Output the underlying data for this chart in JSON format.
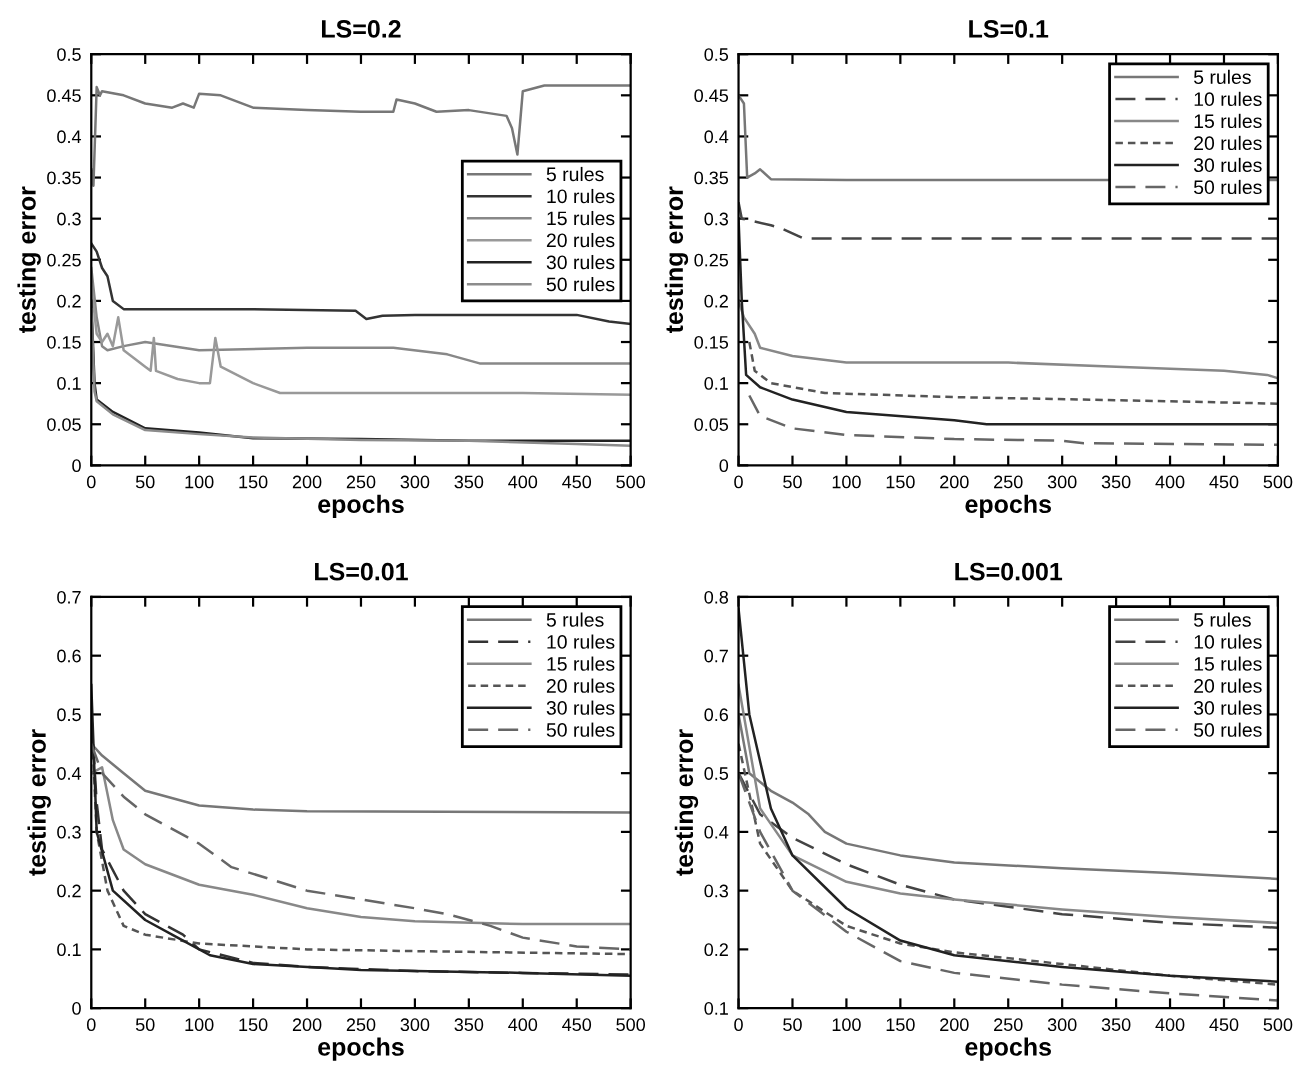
{
  "chart_data": [
    {
      "type": "line",
      "title": "LS=0.2",
      "xlabel": "epochs",
      "ylabel": "testing error",
      "xlim": [
        0,
        500
      ],
      "xticks": [
        0,
        50,
        100,
        150,
        200,
        250,
        300,
        350,
        400,
        450,
        500
      ],
      "ylim": [
        0,
        0.5
      ],
      "yticks": [
        0,
        0.05,
        0.1,
        0.15,
        0.2,
        0.25,
        0.3,
        0.35,
        0.4,
        0.45,
        0.5
      ],
      "grid": false,
      "legend": "right",
      "series": [
        {
          "name": "5 rules",
          "color": "#777777",
          "line_style": "solid",
          "x": [
            0,
            2,
            5,
            8,
            10,
            30,
            50,
            75,
            85,
            95,
            100,
            120,
            150,
            200,
            250,
            280,
            283,
            300,
            320,
            350,
            385,
            390,
            395,
            400,
            420,
            500
          ],
          "values": [
            0.36,
            0.34,
            0.46,
            0.45,
            0.455,
            0.45,
            0.44,
            0.435,
            0.44,
            0.435,
            0.452,
            0.45,
            0.435,
            0.432,
            0.43,
            0.43,
            0.445,
            0.44,
            0.43,
            0.432,
            0.425,
            0.41,
            0.378,
            0.455,
            0.462,
            0.462
          ]
        },
        {
          "name": "10 rules",
          "color": "#333333",
          "line_style": "solid",
          "x": [
            0,
            5,
            10,
            15,
            20,
            30,
            100,
            150,
            245,
            255,
            270,
            300,
            400,
            450,
            480,
            500
          ],
          "values": [
            0.27,
            0.26,
            0.24,
            0.23,
            0.2,
            0.19,
            0.19,
            0.19,
            0.188,
            0.178,
            0.182,
            0.183,
            0.183,
            0.183,
            0.175,
            0.172
          ]
        },
        {
          "name": "15 rules",
          "color": "#888888",
          "line_style": "solid",
          "x": [
            0,
            5,
            10,
            15,
            30,
            50,
            100,
            200,
            280,
            330,
            360,
            500
          ],
          "values": [
            0.24,
            0.18,
            0.145,
            0.14,
            0.145,
            0.15,
            0.14,
            0.143,
            0.143,
            0.135,
            0.124,
            0.124
          ]
        },
        {
          "name": "20 rules",
          "color": "#999999",
          "line_style": "solid",
          "x": [
            0,
            5,
            10,
            15,
            20,
            25,
            30,
            40,
            50,
            55,
            58,
            60,
            80,
            100,
            110,
            115,
            120,
            150,
            175,
            250,
            400,
            500
          ],
          "values": [
            0.22,
            0.16,
            0.15,
            0.16,
            0.145,
            0.18,
            0.14,
            0.13,
            0.12,
            0.115,
            0.155,
            0.115,
            0.105,
            0.1,
            0.1,
            0.155,
            0.12,
            0.1,
            0.088,
            0.088,
            0.088,
            0.086
          ]
        },
        {
          "name": "30 rules",
          "color": "#222222",
          "line_style": "solid",
          "x": [
            0,
            3,
            5,
            20,
            50,
            100,
            150,
            250,
            350,
            500
          ],
          "values": [
            0.2,
            0.1,
            0.08,
            0.065,
            0.045,
            0.04,
            0.033,
            0.032,
            0.03,
            0.03
          ]
        },
        {
          "name": "50 rules",
          "color": "#8c8c8c",
          "line_style": "solid",
          "x": [
            0,
            3,
            5,
            20,
            50,
            100,
            150,
            250,
            350,
            450,
            500
          ],
          "values": [
            0.19,
            0.09,
            0.078,
            0.062,
            0.043,
            0.038,
            0.034,
            0.031,
            0.03,
            0.026,
            0.024
          ]
        }
      ]
    },
    {
      "type": "line",
      "title": "LS=0.1",
      "xlabel": "epochs",
      "ylabel": "testing error",
      "xlim": [
        0,
        500
      ],
      "xticks": [
        0,
        50,
        100,
        150,
        200,
        250,
        300,
        350,
        400,
        450,
        500
      ],
      "ylim": [
        0,
        0.5
      ],
      "yticks": [
        0,
        0.05,
        0.1,
        0.15,
        0.2,
        0.25,
        0.3,
        0.35,
        0.4,
        0.45,
        0.5
      ],
      "grid": false,
      "legend": "top right",
      "series": [
        {
          "name": "5 rules",
          "color": "#777777",
          "line_style": "solid",
          "x": [
            0,
            5,
            8,
            15,
            20,
            30,
            100,
            300,
            500
          ],
          "values": [
            0.45,
            0.44,
            0.35,
            0.355,
            0.36,
            0.348,
            0.347,
            0.347,
            0.347
          ]
        },
        {
          "name": "10 rules",
          "color": "#444444",
          "line_style": "dashed",
          "x": [
            0,
            3,
            30,
            40,
            60,
            500
          ],
          "values": [
            0.32,
            0.3,
            0.292,
            0.288,
            0.276,
            0.276
          ]
        },
        {
          "name": "15 rules",
          "color": "#888888",
          "line_style": "solid",
          "x": [
            0,
            5,
            15,
            20,
            50,
            100,
            250,
            350,
            450,
            490,
            500
          ],
          "values": [
            0.2,
            0.18,
            0.16,
            0.143,
            0.133,
            0.125,
            0.125,
            0.12,
            0.115,
            0.11,
            0.106
          ]
        },
        {
          "name": "20 rules",
          "color": "#555555",
          "line_style": "dotted",
          "x": [
            10,
            15,
            30,
            80,
            200,
            400,
            500
          ],
          "values": [
            0.15,
            0.115,
            0.1,
            0.088,
            0.083,
            0.078,
            0.075
          ]
        },
        {
          "name": "30 rules",
          "color": "#222222",
          "line_style": "solid",
          "x": [
            0,
            3,
            7,
            20,
            50,
            100,
            200,
            230,
            500
          ],
          "values": [
            0.3,
            0.2,
            0.11,
            0.095,
            0.08,
            0.065,
            0.055,
            0.05,
            0.05
          ]
        },
        {
          "name": "50 rules",
          "color": "#666666",
          "line_style": "dashed",
          "x": [
            10,
            20,
            50,
            100,
            200,
            300,
            320,
            500
          ],
          "values": [
            0.085,
            0.06,
            0.045,
            0.037,
            0.032,
            0.03,
            0.027,
            0.025
          ]
        }
      ]
    },
    {
      "type": "line",
      "title": "LS=0.01",
      "xlabel": "epochs",
      "ylabel": "testing error",
      "xlim": [
        0,
        500
      ],
      "xticks": [
        0,
        50,
        100,
        150,
        200,
        250,
        300,
        350,
        400,
        450,
        500
      ],
      "ylim": [
        0,
        0.7
      ],
      "yticks": [
        0,
        0.1,
        0.2,
        0.3,
        0.4,
        0.5,
        0.6,
        0.7
      ],
      "grid": false,
      "legend": "top right",
      "series": [
        {
          "name": "5 rules",
          "color": "#777777",
          "line_style": "solid",
          "x": [
            0,
            10,
            30,
            50,
            100,
            150,
            200,
            500
          ],
          "values": [
            0.45,
            0.43,
            0.4,
            0.37,
            0.345,
            0.338,
            0.335,
            0.333
          ]
        },
        {
          "name": "10 rules",
          "color": "#333333",
          "line_style": "dashed",
          "x": [
            0,
            5,
            10,
            30,
            50,
            70,
            85,
            100,
            150,
            200,
            300,
            400,
            500
          ],
          "values": [
            0.5,
            0.35,
            0.27,
            0.2,
            0.16,
            0.14,
            0.125,
            0.1,
            0.077,
            0.07,
            0.063,
            0.06,
            0.057
          ]
        },
        {
          "name": "15 rules",
          "color": "#888888",
          "line_style": "solid",
          "x": [
            0,
            10,
            20,
            30,
            50,
            100,
            150,
            200,
            250,
            300,
            400,
            500
          ],
          "values": [
            0.4,
            0.41,
            0.32,
            0.27,
            0.245,
            0.21,
            0.193,
            0.17,
            0.155,
            0.148,
            0.143,
            0.143
          ]
        },
        {
          "name": "20 rules",
          "color": "#555555",
          "line_style": "dotted",
          "x": [
            0,
            5,
            15,
            30,
            50,
            100,
            200,
            300,
            500
          ],
          "values": [
            0.5,
            0.3,
            0.2,
            0.14,
            0.125,
            0.11,
            0.1,
            0.097,
            0.092
          ]
        },
        {
          "name": "30 rules",
          "color": "#222222",
          "line_style": "solid",
          "x": [
            0,
            5,
            20,
            50,
            80,
            110,
            150,
            250,
            400,
            500
          ],
          "values": [
            0.55,
            0.3,
            0.2,
            0.15,
            0.12,
            0.09,
            0.075,
            0.065,
            0.06,
            0.055
          ]
        },
        {
          "name": "50 rules",
          "color": "#666666",
          "line_style": "dashed",
          "x": [
            0,
            10,
            30,
            50,
            100,
            130,
            200,
            300,
            330,
            370,
            400,
            450,
            500
          ],
          "values": [
            0.45,
            0.4,
            0.36,
            0.33,
            0.28,
            0.24,
            0.2,
            0.17,
            0.16,
            0.14,
            0.12,
            0.105,
            0.1
          ]
        }
      ]
    },
    {
      "type": "line",
      "title": "LS=0.001",
      "xlabel": "epochs",
      "ylabel": "testing error",
      "xlim": [
        0,
        500
      ],
      "xticks": [
        0,
        50,
        100,
        150,
        200,
        250,
        300,
        350,
        400,
        450,
        500
      ],
      "ylim": [
        0.1,
        0.8
      ],
      "yticks": [
        0.1,
        0.2,
        0.3,
        0.4,
        0.5,
        0.6,
        0.7,
        0.8
      ],
      "grid": false,
      "legend": "top right",
      "series": [
        {
          "name": "5 rules",
          "color": "#777777",
          "line_style": "solid",
          "x": [
            0,
            10,
            30,
            50,
            65,
            80,
            100,
            150,
            200,
            300,
            400,
            500
          ],
          "values": [
            0.6,
            0.5,
            0.47,
            0.45,
            0.43,
            0.4,
            0.38,
            0.36,
            0.348,
            0.338,
            0.33,
            0.32
          ]
        },
        {
          "name": "10 rules",
          "color": "#444444",
          "line_style": "dashed",
          "x": [
            0,
            20,
            50,
            100,
            150,
            200,
            300,
            400,
            500
          ],
          "values": [
            0.5,
            0.43,
            0.39,
            0.345,
            0.31,
            0.285,
            0.26,
            0.245,
            0.237
          ]
        },
        {
          "name": "15 rules",
          "color": "#888888",
          "line_style": "solid",
          "x": [
            0,
            20,
            50,
            100,
            150,
            200,
            300,
            400,
            500
          ],
          "values": [
            0.65,
            0.44,
            0.36,
            0.315,
            0.295,
            0.285,
            0.268,
            0.255,
            0.245
          ]
        },
        {
          "name": "20 rules",
          "color": "#555555",
          "line_style": "dotted",
          "x": [
            0,
            20,
            50,
            100,
            150,
            200,
            300,
            400,
            500
          ],
          "values": [
            0.55,
            0.38,
            0.3,
            0.24,
            0.21,
            0.195,
            0.175,
            0.155,
            0.14
          ]
        },
        {
          "name": "30 rules",
          "color": "#222222",
          "line_style": "solid",
          "x": [
            0,
            10,
            30,
            50,
            100,
            150,
            200,
            300,
            400,
            500
          ],
          "values": [
            0.78,
            0.6,
            0.44,
            0.36,
            0.27,
            0.215,
            0.19,
            0.17,
            0.155,
            0.145
          ]
        },
        {
          "name": "50 rules",
          "color": "#666666",
          "line_style": "dashed",
          "x": [
            0,
            20,
            50,
            100,
            150,
            200,
            300,
            400,
            500
          ],
          "values": [
            0.5,
            0.4,
            0.3,
            0.23,
            0.18,
            0.16,
            0.14,
            0.125,
            0.113
          ]
        }
      ]
    }
  ]
}
